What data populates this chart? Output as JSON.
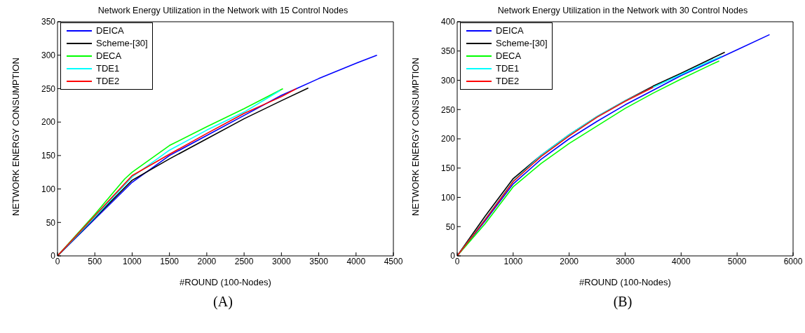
{
  "chart_data": [
    {
      "type": "line",
      "title": "Network Energy Utilization in the Network with 15 Control Nodes",
      "xlabel": "#ROUND (100-Nodes)",
      "ylabel": "NETWORK ENERGY CONSUMPTION",
      "annotations": [
        "(A)"
      ],
      "xlim": [
        0,
        4500
      ],
      "xticks": [
        0,
        500,
        1000,
        1500,
        2000,
        2500,
        3000,
        3500,
        4000,
        4500
      ],
      "ylim": [
        0,
        350
      ],
      "yticks": [
        0,
        50,
        100,
        150,
        200,
        250,
        300,
        350
      ],
      "grid": false,
      "legend": "top left",
      "marker": "none",
      "line_style": "solid",
      "series": [
        {
          "name": "DEICA",
          "color": "#0000ff",
          "x": [
            0,
            500,
            1000,
            1500,
            2000,
            2500,
            3000,
            3200,
            3500,
            4000,
            4280
          ],
          "values": [
            0,
            55,
            110,
            150,
            180,
            210,
            240,
            250,
            265,
            288,
            300
          ]
        },
        {
          "name": "Scheme-[30]",
          "color": "#000000",
          "x": [
            0,
            500,
            1000,
            1500,
            2000,
            2500,
            3000,
            3360
          ],
          "values": [
            0,
            57,
            113,
            145,
            175,
            205,
            232,
            251
          ]
        },
        {
          "name": "DECA",
          "color": "#00ff00",
          "x": [
            0,
            500,
            900,
            1000,
            1500,
            2000,
            2500,
            3020
          ],
          "values": [
            0,
            62,
            115,
            125,
            165,
            193,
            220,
            250
          ]
        },
        {
          "name": "TDE1",
          "color": "#00ffff",
          "x": [
            0,
            500,
            1000,
            1500,
            2000,
            2500,
            2980
          ],
          "values": [
            0,
            58,
            118,
            158,
            188,
            215,
            247
          ]
        },
        {
          "name": "TDE2",
          "color": "#ff0000",
          "x": [
            0,
            500,
            1000,
            1500,
            2000,
            2500,
            3000,
            3200
          ],
          "values": [
            0,
            60,
            120,
            152,
            183,
            213,
            238,
            250
          ]
        }
      ]
    },
    {
      "type": "line",
      "title": "Network Energy Utilization in the Network with 30 Control Nodes",
      "xlabel": "#ROUND (100-Nodes)",
      "ylabel": "NETWORK ENERGY CONSUMPTION",
      "annotations": [
        "(B)"
      ],
      "xlim": [
        0,
        6000
      ],
      "xticks": [
        0,
        1000,
        2000,
        3000,
        4000,
        5000,
        6000
      ],
      "ylim": [
        0,
        400
      ],
      "yticks": [
        0,
        50,
        100,
        150,
        200,
        250,
        300,
        350,
        400
      ],
      "grid": false,
      "legend": "top left",
      "marker": "none",
      "line_style": "solid",
      "series": [
        {
          "name": "DEICA",
          "color": "#0000ff",
          "x": [
            0,
            500,
            1000,
            1500,
            2000,
            2500,
            3000,
            3500,
            4000,
            4500,
            5000,
            5580
          ],
          "values": [
            0,
            60,
            123,
            165,
            200,
            230,
            258,
            283,
            308,
            330,
            352,
            378
          ]
        },
        {
          "name": "Scheme-[30]",
          "color": "#000000",
          "x": [
            0,
            500,
            1000,
            1500,
            2000,
            2500,
            3000,
            3500,
            4000,
            4500,
            4780
          ],
          "values": [
            0,
            68,
            132,
            172,
            207,
            238,
            265,
            290,
            312,
            335,
            348
          ]
        },
        {
          "name": "DECA",
          "color": "#00ff00",
          "x": [
            0,
            500,
            1000,
            1500,
            2000,
            2500,
            3000,
            3500,
            4000,
            4500,
            4680
          ],
          "values": [
            0,
            55,
            118,
            158,
            192,
            222,
            252,
            278,
            302,
            325,
            333
          ]
        },
        {
          "name": "TDE1",
          "color": "#00ffff",
          "x": [
            0,
            500,
            1000,
            1500,
            2000,
            2500,
            3000,
            3500,
            4000,
            4500,
            4720
          ],
          "values": [
            0,
            63,
            128,
            172,
            207,
            238,
            265,
            288,
            310,
            332,
            341
          ]
        },
        {
          "name": "TDE2",
          "color": "#ff0000",
          "x": [
            0,
            500,
            1000,
            1500,
            2000,
            2500,
            3000,
            3500
          ],
          "values": [
            0,
            62,
            127,
            170,
            205,
            237,
            264,
            288
          ]
        }
      ]
    }
  ]
}
